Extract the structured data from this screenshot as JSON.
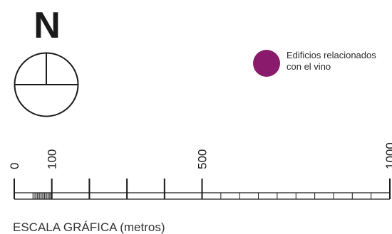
{
  "north": {
    "letter": "N"
  },
  "legend": {
    "label": "Edificios relacionados con el vino",
    "color": "#8a1a6b"
  },
  "scale": {
    "title": "ESCALA GRÁFICA (metros)",
    "unit": "metros",
    "tick_labels": [
      "0",
      "100",
      "500",
      "1000"
    ],
    "tick_values": [
      0,
      100,
      500,
      1000
    ]
  }
}
